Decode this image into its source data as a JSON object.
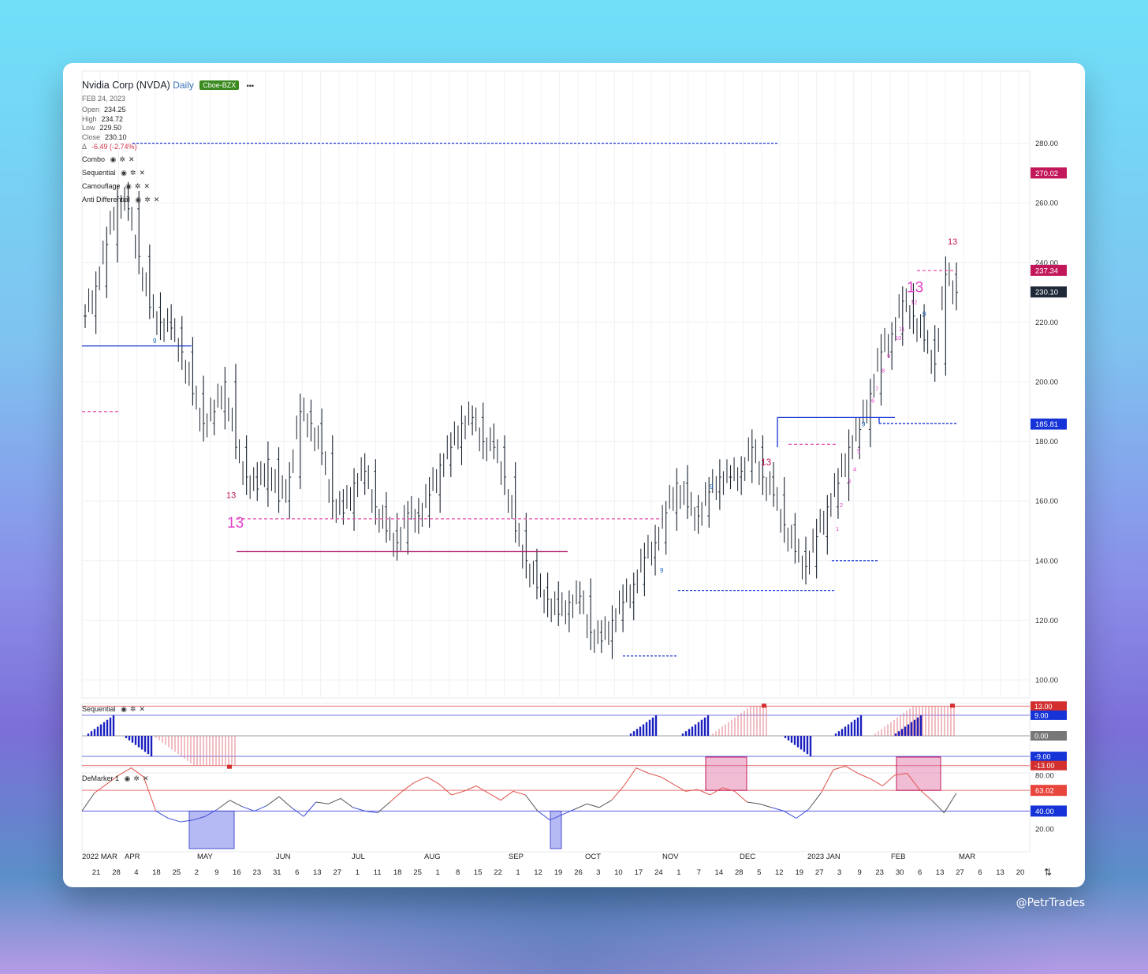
{
  "header": {
    "title": "Nvidia Corp (NVDA)",
    "interval": "Daily",
    "exchange": "Cboe-BZX",
    "menu": "•••",
    "date": "FEB 24, 2023"
  },
  "ohlc": {
    "open_label": "Open",
    "open": "234.25",
    "high_label": "High",
    "high": "234.72",
    "low_label": "Low",
    "low": "229.50",
    "close_label": "Close",
    "close": "230.10",
    "change_label": "Δ",
    "change": "-6.49 (-2.74%)"
  },
  "indicators": [
    "Combo",
    "Sequential",
    "Camouflage",
    "Anti Differential"
  ],
  "icons": {
    "eye": "◉",
    "gear": "✲",
    "close": "✕"
  },
  "sub_panels": {
    "sequential_label": "Sequential",
    "demarker_label": "DeMarker 1"
  },
  "watermark": "@PetrTrades",
  "colors": {
    "price_tag_magenta": "#c2185b",
    "price_tag_dark": "#1e2a38",
    "price_tag_blue": "#1533d6",
    "setup_pink": "#e040c8",
    "sell_red": "#d32f2f",
    "buy_blue": "#1565c0",
    "demarker_line": "#e57373"
  },
  "chart_data": [
    {
      "type": "line",
      "name": "price",
      "ylim": [
        95,
        290
      ],
      "y_ticks": [
        "280.00",
        "260.00",
        "240.00",
        "220.00",
        "200.00",
        "180.00",
        "160.00",
        "140.00",
        "120.00",
        "100.00"
      ],
      "y_tick_values": [
        280,
        260,
        240,
        220,
        200,
        180,
        160,
        140,
        120,
        100
      ],
      "price_tags": [
        {
          "value": 270.02,
          "label": "270.02",
          "color": "#c2185b"
        },
        {
          "value": 237.34,
          "label": "237.34",
          "color": "#c2185b"
        },
        {
          "value": 230.1,
          "label": "230.10",
          "color": "#1e2a38"
        },
        {
          "value": 185.81,
          "label": "185.81",
          "color": "#1533d6"
        }
      ],
      "x_months": [
        "2022 MAR",
        "APR",
        "MAY",
        "JUN",
        "JUL",
        "AUG",
        "SEP",
        "OCT",
        "NOV",
        "DEC",
        "2023 JAN",
        "FEB",
        "MAR"
      ],
      "x_days": [
        "21",
        "28",
        "4",
        "18",
        "25",
        "2",
        "9",
        "16",
        "23",
        "31",
        "6",
        "13",
        "27",
        "1",
        "11",
        "18",
        "25",
        "1",
        "8",
        "15",
        "22",
        "1",
        "12",
        "19",
        "26",
        "3",
        "10",
        "17",
        "24",
        "1",
        "7",
        "14",
        "28",
        "5",
        "12",
        "19",
        "27",
        "3",
        "9",
        "23",
        "30",
        "6",
        "13",
        "27",
        "6",
        "13",
        "20"
      ],
      "closes": [
        222,
        232,
        246,
        262,
        258,
        242,
        225,
        220,
        218,
        210,
        196,
        186,
        190,
        200,
        178,
        168,
        164,
        174,
        160,
        168,
        190,
        186,
        176,
        160,
        156,
        166,
        170,
        158,
        150,
        146,
        156,
        155,
        162,
        172,
        178,
        186,
        188,
        180,
        178,
        168,
        150,
        140,
        131,
        127,
        122,
        126,
        128,
        116,
        113,
        120,
        126,
        132,
        141,
        146,
        156,
        166,
        158,
        155,
        163,
        168,
        168,
        170,
        178,
        168,
        162,
        152,
        143,
        138,
        148,
        158,
        166,
        178,
        184,
        196,
        210,
        216,
        227,
        222,
        214,
        206,
        236,
        230
      ],
      "annotations": [
        "13",
        "13",
        "13",
        "13",
        "13",
        "9",
        "9",
        "9",
        "9"
      ],
      "setup_counts": [
        "1",
        "2",
        "3",
        "4",
        "5",
        "6",
        "7",
        "8",
        "9",
        "10",
        "11",
        "12"
      ]
    },
    {
      "type": "bar",
      "name": "Sequential",
      "y_tags": [
        {
          "value": 13,
          "label": "13.00",
          "color": "#d32f2f"
        },
        {
          "value": 9,
          "label": "9.00",
          "color": "#1533d6"
        },
        {
          "value": 0,
          "label": "0.00",
          "color": "#777777"
        },
        {
          "value": -9,
          "label": "-9.00",
          "color": "#1533d6"
        },
        {
          "value": -13,
          "label": "-13.00",
          "color": "#d32f2f"
        }
      ],
      "ylim": [
        -14,
        14
      ]
    },
    {
      "type": "line",
      "name": "DeMarker 1",
      "ylim": [
        0,
        100
      ],
      "y_ticks": [
        "80.00",
        "20.00"
      ],
      "y_tick_values": [
        80,
        20
      ],
      "levels": [
        {
          "value": 63.02,
          "label": "63.02",
          "color": "#e8453c"
        },
        {
          "value": 40.0,
          "label": "40.00",
          "color": "#1533d6"
        }
      ],
      "values": [
        40,
        60,
        70,
        80,
        88,
        78,
        40,
        32,
        28,
        30,
        34,
        42,
        52,
        45,
        40,
        46,
        56,
        44,
        34,
        50,
        48,
        54,
        44,
        40,
        38,
        50,
        62,
        72,
        78,
        70,
        58,
        62,
        68,
        60,
        52,
        62,
        58,
        40,
        30,
        36,
        42,
        48,
        44,
        52,
        68,
        88,
        82,
        78,
        70,
        62,
        64,
        58,
        66,
        62,
        50,
        48,
        44,
        40,
        32,
        42,
        60,
        86,
        90,
        82,
        76,
        68,
        80,
        82,
        64,
        52,
        38,
        60
      ]
    }
  ]
}
